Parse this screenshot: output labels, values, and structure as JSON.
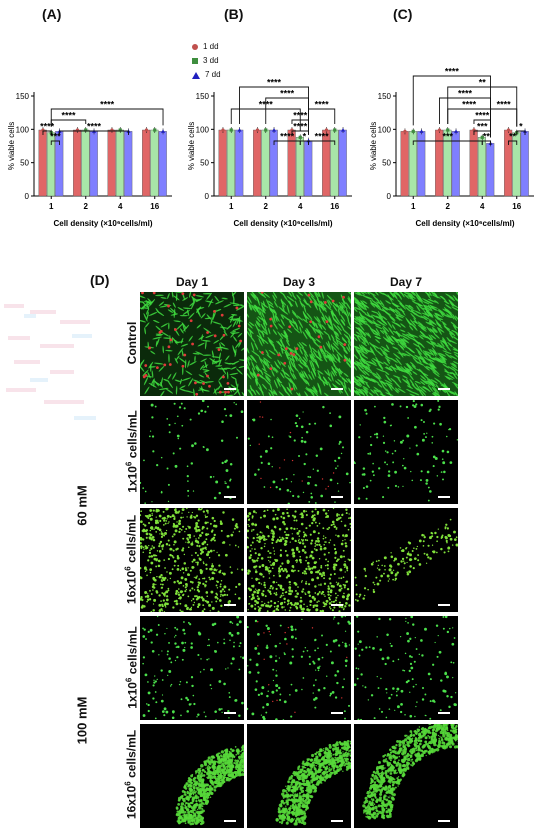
{
  "panels": {
    "A": "(A)",
    "B": "(B)",
    "C": "(C)",
    "D": "(D)"
  },
  "legend": [
    {
      "label": "1 dd",
      "color": "#c0504d",
      "marker": "circle"
    },
    {
      "label": "3 dd",
      "color": "#3e8e3e",
      "marker": "square"
    },
    {
      "label": "7 dd",
      "color": "#1f1fbf",
      "marker": "triangle"
    }
  ],
  "chart_data": [
    {
      "type": "bar",
      "panel": "A",
      "categories": [
        "1",
        "2",
        "4",
        "16"
      ],
      "series": [
        {
          "name": "1 dd",
          "values": [
            99,
            99,
            99,
            99
          ]
        },
        {
          "name": "3 dd",
          "values": [
            95,
            99,
            99,
            99
          ]
        },
        {
          "name": "7 dd",
          "values": [
            97,
            97,
            97,
            97
          ]
        }
      ],
      "ylabel": "% viable cells",
      "xlabel": "Cell density (×10⁶cells/ml)",
      "yticks": [
        "0",
        "50",
        "100",
        "150"
      ],
      "ylim": [
        0,
        150
      ],
      "bar_colors": [
        "#e06666",
        "#a8e6a8",
        "#7f7fff"
      ],
      "significance": [
        {
          "text": "****",
          "from": [
            0,
            0
          ],
          "to": [
            0,
            1
          ],
          "level": 1
        },
        {
          "text": "***",
          "from": [
            0,
            1
          ],
          "to": [
            0,
            2
          ],
          "level": 0
        },
        {
          "text": "****",
          "from": [
            0,
            1
          ],
          "to": [
            1,
            1
          ],
          "level": 2
        },
        {
          "text": "****",
          "from": [
            0,
            2
          ],
          "to": [
            2,
            2
          ],
          "level": 1
        },
        {
          "text": "****",
          "from": [
            0,
            1
          ],
          "to": [
            3,
            2
          ],
          "level": 3
        }
      ]
    },
    {
      "type": "bar",
      "panel": "B",
      "categories": [
        "1",
        "2",
        "4",
        "16"
      ],
      "series": [
        {
          "name": "1 dd",
          "values": [
            99,
            99,
            99,
            99
          ]
        },
        {
          "name": "3 dd",
          "values": [
            99,
            99,
            88,
            99
          ]
        },
        {
          "name": "7 dd",
          "values": [
            99,
            99,
            83,
            99
          ]
        }
      ],
      "ylabel": "% viable cells",
      "xlabel": "Cell density (×10⁶cells/ml)",
      "yticks": [
        "0",
        "50",
        "100",
        "150"
      ],
      "ylim": [
        0,
        150
      ],
      "bar_colors": [
        "#e06666",
        "#a8e6a8",
        "#7f7fff"
      ],
      "significance": [
        {
          "text": "****",
          "from": [
            1,
            2
          ],
          "to": [
            2,
            1
          ],
          "level": 0
        },
        {
          "text": "*",
          "from": [
            2,
            1
          ],
          "to": [
            2,
            2
          ],
          "level": 0
        },
        {
          "text": "****",
          "from": [
            2,
            2
          ],
          "to": [
            3,
            1
          ],
          "level": 0
        },
        {
          "text": "****",
          "from": [
            2,
            0
          ],
          "to": [
            2,
            2
          ],
          "level": 1
        },
        {
          "text": "****",
          "from": [
            2,
            0
          ],
          "to": [
            2,
            2
          ],
          "level": 2
        },
        {
          "text": "****",
          "from": [
            0,
            1
          ],
          "to": [
            2,
            1
          ],
          "level": 3
        },
        {
          "text": "****",
          "from": [
            2,
            2
          ],
          "to": [
            3,
            1
          ],
          "level": 3
        },
        {
          "text": "****",
          "from": [
            1,
            1
          ],
          "to": [
            2,
            2
          ],
          "level": 4
        },
        {
          "text": "****",
          "from": [
            0,
            2
          ],
          "to": [
            2,
            2
          ],
          "level": 5
        }
      ]
    },
    {
      "type": "bar",
      "panel": "C",
      "categories": [
        "1",
        "2",
        "4",
        "16"
      ],
      "series": [
        {
          "name": "1 dd",
          "values": [
            97,
            99,
            99,
            99
          ]
        },
        {
          "name": "3 dd",
          "values": [
            97,
            99,
            88,
            95
          ]
        },
        {
          "name": "7 dd",
          "values": [
            97,
            97,
            79,
            97
          ]
        }
      ],
      "ylabel": "% viable cells",
      "xlabel": "Cell density (×10⁶cells/ml)",
      "yticks": [
        "0",
        "50",
        "100",
        "150"
      ],
      "ylim": [
        0,
        150
      ],
      "bar_colors": [
        "#e06666",
        "#a8e6a8",
        "#7f7fff"
      ],
      "significance": [
        {
          "text": "***",
          "from": [
            0,
            1
          ],
          "to": [
            2,
            1
          ],
          "level": 0
        },
        {
          "text": "**",
          "from": [
            2,
            1
          ],
          "to": [
            2,
            2
          ],
          "level": 0
        },
        {
          "text": "**",
          "from": [
            3,
            0
          ],
          "to": [
            3,
            1
          ],
          "level": 0
        },
        {
          "text": "*",
          "from": [
            3,
            1
          ],
          "to": [
            3,
            2
          ],
          "level": 1
        },
        {
          "text": "***",
          "from": [
            2,
            0
          ],
          "to": [
            2,
            2
          ],
          "level": 1
        },
        {
          "text": "****",
          "from": [
            2,
            0
          ],
          "to": [
            2,
            2
          ],
          "level": 2
        },
        {
          "text": "****",
          "from": [
            1,
            1
          ],
          "to": [
            2,
            2
          ],
          "level": 3
        },
        {
          "text": "****",
          "from": [
            2,
            2
          ],
          "to": [
            3,
            1
          ],
          "level": 3
        },
        {
          "text": "****",
          "from": [
            1,
            0
          ],
          "to": [
            2,
            2
          ],
          "level": 4
        },
        {
          "text": "**",
          "from": [
            1,
            1
          ],
          "to": [
            3,
            1
          ],
          "level": 5
        },
        {
          "text": "****",
          "from": [
            0,
            1
          ],
          "to": [
            2,
            2
          ],
          "level": 6
        }
      ]
    }
  ],
  "micrographs": {
    "columns": [
      "Day 1",
      "Day 3",
      "Day 7"
    ],
    "rows": [
      {
        "label": "Control",
        "kind": "dense-control"
      },
      {
        "label": "1x10",
        "sup": "6",
        "suffix": " cells/mL",
        "kind": "sparse"
      },
      {
        "label": "16x10",
        "sup": "6",
        "suffix": " cells/mL",
        "kind": "dense"
      },
      {
        "label": "1x10",
        "sup": "6",
        "suffix": " cells/mL",
        "kind": "sparse2"
      },
      {
        "label": "16x10",
        "sup": "6",
        "suffix": " cells/mL",
        "kind": "arc"
      }
    ],
    "groups": [
      {
        "label": "60 mM"
      },
      {
        "label": "100 mM"
      }
    ]
  }
}
